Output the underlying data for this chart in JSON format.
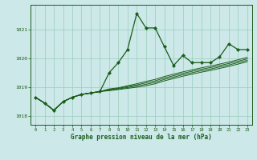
{
  "title": "Graphe pression niveau de la mer (hPa)",
  "bg_color": "#cce8e8",
  "grid_color": "#99ccbb",
  "line_color": "#1a5c1a",
  "x_ticks": [
    0,
    1,
    2,
    3,
    4,
    5,
    6,
    7,
    8,
    9,
    10,
    11,
    12,
    13,
    14,
    15,
    16,
    17,
    18,
    19,
    20,
    21,
    22,
    23
  ],
  "y_ticks": [
    1018,
    1019,
    1020,
    1021
  ],
  "ylim": [
    1017.7,
    1021.85
  ],
  "xlim": [
    -0.5,
    23.5
  ],
  "main_y": [
    1018.65,
    1018.45,
    1018.2,
    1018.5,
    1018.65,
    1018.75,
    1018.8,
    1018.85,
    1019.5,
    1019.85,
    1020.3,
    1021.55,
    1021.05,
    1021.05,
    1020.4,
    1019.75,
    1020.1,
    1019.85,
    1019.85,
    1019.85,
    1020.05,
    1020.5,
    1020.3,
    1020.3
  ],
  "bundle_lines": [
    [
      1018.65,
      1018.45,
      1018.2,
      1018.5,
      1018.65,
      1018.75,
      1018.8,
      1018.85,
      1018.88,
      1018.92,
      1018.96,
      1019.0,
      1019.05,
      1019.12,
      1019.22,
      1019.3,
      1019.38,
      1019.45,
      1019.52,
      1019.58,
      1019.65,
      1019.72,
      1019.8,
      1019.88
    ],
    [
      1018.65,
      1018.45,
      1018.2,
      1018.5,
      1018.65,
      1018.75,
      1018.8,
      1018.85,
      1018.9,
      1018.94,
      1018.99,
      1019.04,
      1019.1,
      1019.17,
      1019.27,
      1019.35,
      1019.43,
      1019.5,
      1019.57,
      1019.63,
      1019.7,
      1019.77,
      1019.85,
      1019.93
    ],
    [
      1018.65,
      1018.45,
      1018.2,
      1018.5,
      1018.65,
      1018.75,
      1018.8,
      1018.85,
      1018.92,
      1018.96,
      1019.02,
      1019.08,
      1019.15,
      1019.22,
      1019.32,
      1019.4,
      1019.48,
      1019.55,
      1019.62,
      1019.68,
      1019.75,
      1019.82,
      1019.9,
      1019.98
    ],
    [
      1018.65,
      1018.45,
      1018.2,
      1018.5,
      1018.65,
      1018.75,
      1018.8,
      1018.85,
      1018.94,
      1018.98,
      1019.05,
      1019.12,
      1019.2,
      1019.27,
      1019.37,
      1019.45,
      1019.53,
      1019.6,
      1019.67,
      1019.73,
      1019.8,
      1019.87,
      1019.95,
      1020.03
    ]
  ]
}
